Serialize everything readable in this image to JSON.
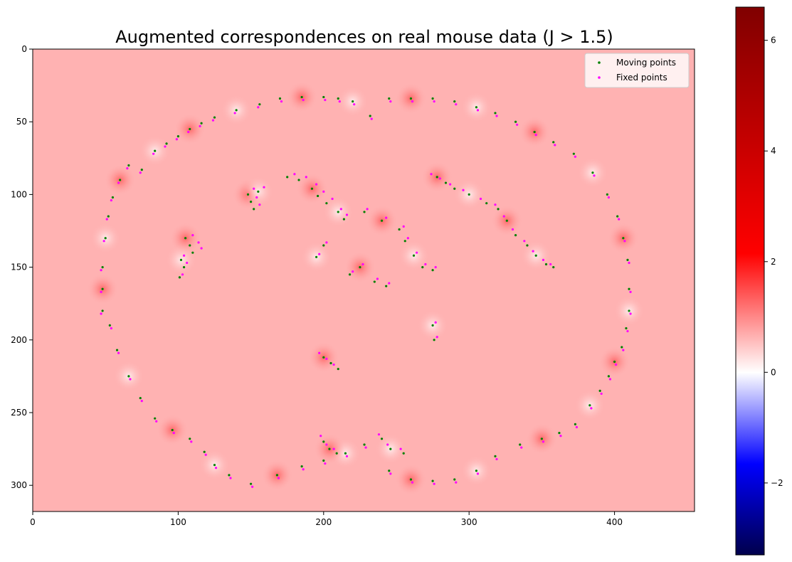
{
  "chart_data": {
    "type": "scatter",
    "title": "Augmented correspondences on real mouse data (J > 1.5)",
    "xlabel": "",
    "ylabel": "",
    "xlim": [
      0,
      455
    ],
    "ylim": [
      318,
      0
    ],
    "x_ticks": [
      0,
      100,
      200,
      300,
      400
    ],
    "y_ticks": [
      0,
      50,
      100,
      150,
      200,
      250,
      300
    ],
    "grid": false,
    "legend_position": "top-right",
    "background": "jacobian-determinant heatmap (seismic colormap), mostly ~1 with local maxima near points",
    "series": [
      {
        "name": "Moving points",
        "color": "#008000",
        "marker": "dot",
        "points": [
          [
            48,
            165
          ],
          [
            48,
            150
          ],
          [
            48,
            180
          ],
          [
            50,
            130
          ],
          [
            52,
            115
          ],
          [
            55,
            102
          ],
          [
            60,
            90
          ],
          [
            66,
            80
          ],
          [
            75,
            83
          ],
          [
            84,
            70
          ],
          [
            92,
            65
          ],
          [
            100,
            60
          ],
          [
            108,
            55
          ],
          [
            116,
            51
          ],
          [
            125,
            47
          ],
          [
            140,
            42
          ],
          [
            156,
            38
          ],
          [
            170,
            34
          ],
          [
            185,
            33
          ],
          [
            200,
            33
          ],
          [
            210,
            34
          ],
          [
            220,
            36
          ],
          [
            232,
            46
          ],
          [
            245,
            34
          ],
          [
            260,
            34
          ],
          [
            275,
            34
          ],
          [
            290,
            36
          ],
          [
            305,
            40
          ],
          [
            318,
            44
          ],
          [
            332,
            50
          ],
          [
            345,
            57
          ],
          [
            358,
            64
          ],
          [
            372,
            72
          ],
          [
            385,
            85
          ],
          [
            395,
            100
          ],
          [
            402,
            115
          ],
          [
            406,
            130
          ],
          [
            409,
            145
          ],
          [
            410,
            165
          ],
          [
            410,
            180
          ],
          [
            408,
            192
          ],
          [
            405,
            205
          ],
          [
            400,
            215
          ],
          [
            396,
            225
          ],
          [
            390,
            235
          ],
          [
            383,
            245
          ],
          [
            373,
            258
          ],
          [
            362,
            264
          ],
          [
            350,
            268
          ],
          [
            335,
            272
          ],
          [
            318,
            280
          ],
          [
            305,
            290
          ],
          [
            290,
            296
          ],
          [
            275,
            297
          ],
          [
            260,
            296
          ],
          [
            245,
            290
          ],
          [
            228,
            272
          ],
          [
            215,
            278
          ],
          [
            200,
            283
          ],
          [
            185,
            287
          ],
          [
            168,
            293
          ],
          [
            150,
            299
          ],
          [
            135,
            293
          ],
          [
            125,
            286
          ],
          [
            118,
            277
          ],
          [
            108,
            268
          ],
          [
            96,
            262
          ],
          [
            84,
            254
          ],
          [
            74,
            240
          ],
          [
            66,
            225
          ],
          [
            58,
            207
          ],
          [
            53,
            190
          ],
          [
            105,
            130
          ],
          [
            108,
            135
          ],
          [
            110,
            140
          ],
          [
            102,
            145
          ],
          [
            104,
            150
          ],
          [
            101,
            157
          ],
          [
            148,
            100
          ],
          [
            150,
            105
          ],
          [
            152,
            110
          ],
          [
            155,
            98
          ],
          [
            175,
            88
          ],
          [
            183,
            90
          ],
          [
            192,
            96
          ],
          [
            196,
            101
          ],
          [
            202,
            106
          ],
          [
            210,
            112
          ],
          [
            214,
            117
          ],
          [
            228,
            112
          ],
          [
            240,
            118
          ],
          [
            252,
            124
          ],
          [
            256,
            132
          ],
          [
            262,
            142
          ],
          [
            268,
            150
          ],
          [
            275,
            152
          ],
          [
            278,
            88
          ],
          [
            284,
            92
          ],
          [
            290,
            96
          ],
          [
            300,
            100
          ],
          [
            312,
            106
          ],
          [
            320,
            110
          ],
          [
            326,
            118
          ],
          [
            332,
            128
          ],
          [
            340,
            135
          ],
          [
            346,
            142
          ],
          [
            353,
            148
          ],
          [
            358,
            150
          ],
          [
            200,
            212
          ],
          [
            205,
            216
          ],
          [
            210,
            220
          ],
          [
            195,
            143
          ],
          [
            200,
            135
          ],
          [
            218,
            155
          ],
          [
            225,
            150
          ],
          [
            235,
            160
          ],
          [
            243,
            163
          ],
          [
            275,
            190
          ],
          [
            276,
            200
          ],
          [
            200,
            270
          ],
          [
            204,
            275
          ],
          [
            209,
            278
          ],
          [
            240,
            268
          ],
          [
            246,
            275
          ],
          [
            255,
            278
          ]
        ]
      },
      {
        "name": "Fixed points",
        "color": "#ff00ff",
        "marker": "dot",
        "points": [
          [
            47,
            167
          ],
          [
            47,
            152
          ],
          [
            47,
            182
          ],
          [
            49,
            132
          ],
          [
            51,
            117
          ],
          [
            54,
            104
          ],
          [
            59,
            92
          ],
          [
            65,
            82
          ],
          [
            74,
            85
          ],
          [
            83,
            72
          ],
          [
            91,
            67
          ],
          [
            99,
            62
          ],
          [
            107,
            57
          ],
          [
            115,
            53
          ],
          [
            124,
            49
          ],
          [
            139,
            44
          ],
          [
            155,
            40
          ],
          [
            171,
            36
          ],
          [
            186,
            35
          ],
          [
            201,
            35
          ],
          [
            211,
            36
          ],
          [
            221,
            38
          ],
          [
            233,
            48
          ],
          [
            246,
            36
          ],
          [
            261,
            36
          ],
          [
            276,
            36
          ],
          [
            291,
            38
          ],
          [
            306,
            42
          ],
          [
            319,
            46
          ],
          [
            333,
            52
          ],
          [
            346,
            59
          ],
          [
            359,
            66
          ],
          [
            373,
            74
          ],
          [
            386,
            87
          ],
          [
            396,
            102
          ],
          [
            403,
            117
          ],
          [
            407,
            132
          ],
          [
            410,
            147
          ],
          [
            411,
            167
          ],
          [
            411,
            182
          ],
          [
            409,
            194
          ],
          [
            406,
            207
          ],
          [
            401,
            217
          ],
          [
            397,
            227
          ],
          [
            391,
            237
          ],
          [
            384,
            247
          ],
          [
            374,
            260
          ],
          [
            363,
            266
          ],
          [
            351,
            270
          ],
          [
            336,
            274
          ],
          [
            319,
            282
          ],
          [
            306,
            292
          ],
          [
            291,
            298
          ],
          [
            276,
            299
          ],
          [
            261,
            298
          ],
          [
            246,
            292
          ],
          [
            229,
            274
          ],
          [
            216,
            280
          ],
          [
            201,
            285
          ],
          [
            186,
            289
          ],
          [
            169,
            295
          ],
          [
            151,
            301
          ],
          [
            136,
            295
          ],
          [
            126,
            288
          ],
          [
            119,
            279
          ],
          [
            109,
            270
          ],
          [
            97,
            264
          ],
          [
            85,
            256
          ],
          [
            75,
            242
          ],
          [
            67,
            227
          ],
          [
            59,
            209
          ],
          [
            54,
            192
          ],
          [
            110,
            128
          ],
          [
            114,
            133
          ],
          [
            116,
            137
          ],
          [
            104,
            142
          ],
          [
            106,
            147
          ],
          [
            103,
            155
          ],
          [
            152,
            96
          ],
          [
            154,
            102
          ],
          [
            156,
            107
          ],
          [
            159,
            95
          ],
          [
            180,
            86
          ],
          [
            188,
            88
          ],
          [
            195,
            93
          ],
          [
            200,
            98
          ],
          [
            206,
            103
          ],
          [
            212,
            110
          ],
          [
            216,
            114
          ],
          [
            230,
            110
          ],
          [
            243,
            116
          ],
          [
            255,
            122
          ],
          [
            258,
            130
          ],
          [
            264,
            140
          ],
          [
            270,
            148
          ],
          [
            277,
            150
          ],
          [
            274,
            86
          ],
          [
            280,
            89
          ],
          [
            287,
            93
          ],
          [
            296,
            97
          ],
          [
            308,
            103
          ],
          [
            318,
            107
          ],
          [
            324,
            115
          ],
          [
            330,
            124
          ],
          [
            338,
            132
          ],
          [
            344,
            139
          ],
          [
            351,
            145
          ],
          [
            356,
            148
          ],
          [
            197,
            209
          ],
          [
            202,
            213
          ],
          [
            207,
            217
          ],
          [
            197,
            141
          ],
          [
            202,
            133
          ],
          [
            220,
            153
          ],
          [
            227,
            148
          ],
          [
            237,
            158
          ],
          [
            245,
            161
          ],
          [
            277,
            188
          ],
          [
            278,
            198
          ],
          [
            198,
            266
          ],
          [
            202,
            272
          ],
          [
            207,
            275
          ],
          [
            238,
            265
          ],
          [
            244,
            272
          ],
          [
            253,
            275
          ]
        ]
      }
    ],
    "colorbar": {
      "colormap": "seismic",
      "vmin": -3.3,
      "vmax": 6.6,
      "ticks": [
        -2,
        0,
        2,
        4,
        6
      ],
      "tick_labels": [
        "−2",
        "0",
        "2",
        "4",
        "6"
      ],
      "center": 0
    }
  }
}
